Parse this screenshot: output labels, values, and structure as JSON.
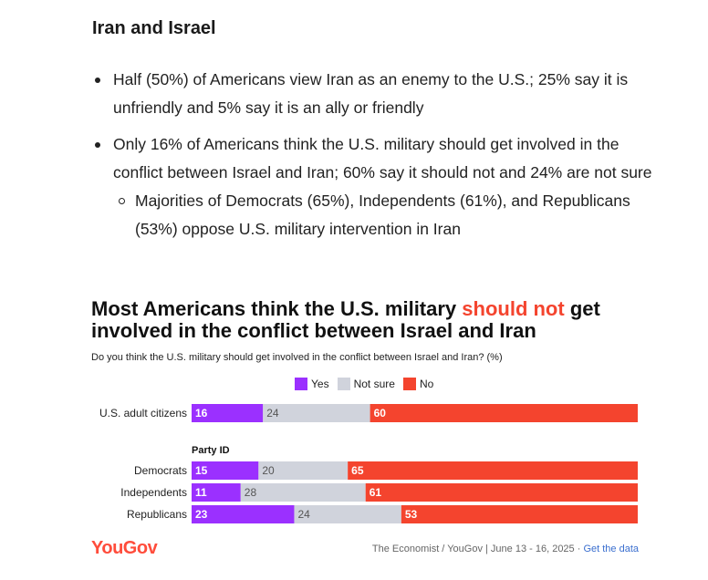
{
  "section_title": "Iran and Israel",
  "bullets": [
    {
      "text": "Half (50%) of Americans view Iran as an enemy to the U.S.; 25% say it is unfriendly and 5% say it is an ally or friendly"
    },
    {
      "text": "Only 16% of Americans think the U.S. military should get involved in the conflict between Israel and Iran; 60% say it should not and 24% are not sure"
    }
  ],
  "sub_bullets": [
    {
      "text": "Majorities of Democrats (65%), Independents (61%), and Republicans (53%) oppose U.S. military intervention in Iran"
    }
  ],
  "chart_title": {
    "part1": "Most Americans think the U.S. military ",
    "highlight": "should not",
    "part2": " get involved in the conflict between Israel and Iran"
  },
  "chart_subtitle": "Do you think the U.S. military should get involved in the conflict between Israel and Iran? (%)",
  "colors": {
    "yes": "#9b30ff",
    "not_sure": "#d0d3dc",
    "no": "#f4442e",
    "highlight": "#f4442e",
    "logo": "#ff4c3b"
  },
  "chart_data": {
    "type": "bar",
    "orientation": "horizontal",
    "stacked": true,
    "title": "Most Americans think the U.S. military should not get involved in the conflict between Israel and Iran",
    "subtitle": "Do you think the U.S. military should get involved in the conflict between Israel and Iran? (%)",
    "legend": [
      {
        "key": "yes",
        "label": "Yes"
      },
      {
        "key": "not_sure",
        "label": "Not sure"
      },
      {
        "key": "no",
        "label": "No"
      }
    ],
    "legend_position": "top",
    "group_label": "Party ID",
    "categories": [
      "U.S. adult citizens",
      "Democrats",
      "Independents",
      "Republicans"
    ],
    "series": [
      {
        "name": "Yes",
        "key": "yes",
        "values": [
          16,
          15,
          11,
          23
        ]
      },
      {
        "name": "Not sure",
        "key": "not_sure",
        "values": [
          24,
          20,
          28,
          24
        ]
      },
      {
        "name": "No",
        "key": "no",
        "values": [
          60,
          65,
          61,
          53
        ]
      }
    ],
    "xlim": [
      0,
      100
    ]
  },
  "footer": {
    "logo": "YouGov",
    "source": "The Economist / YouGov | June 13 - 16, 2025 · ",
    "link": "Get the data"
  }
}
